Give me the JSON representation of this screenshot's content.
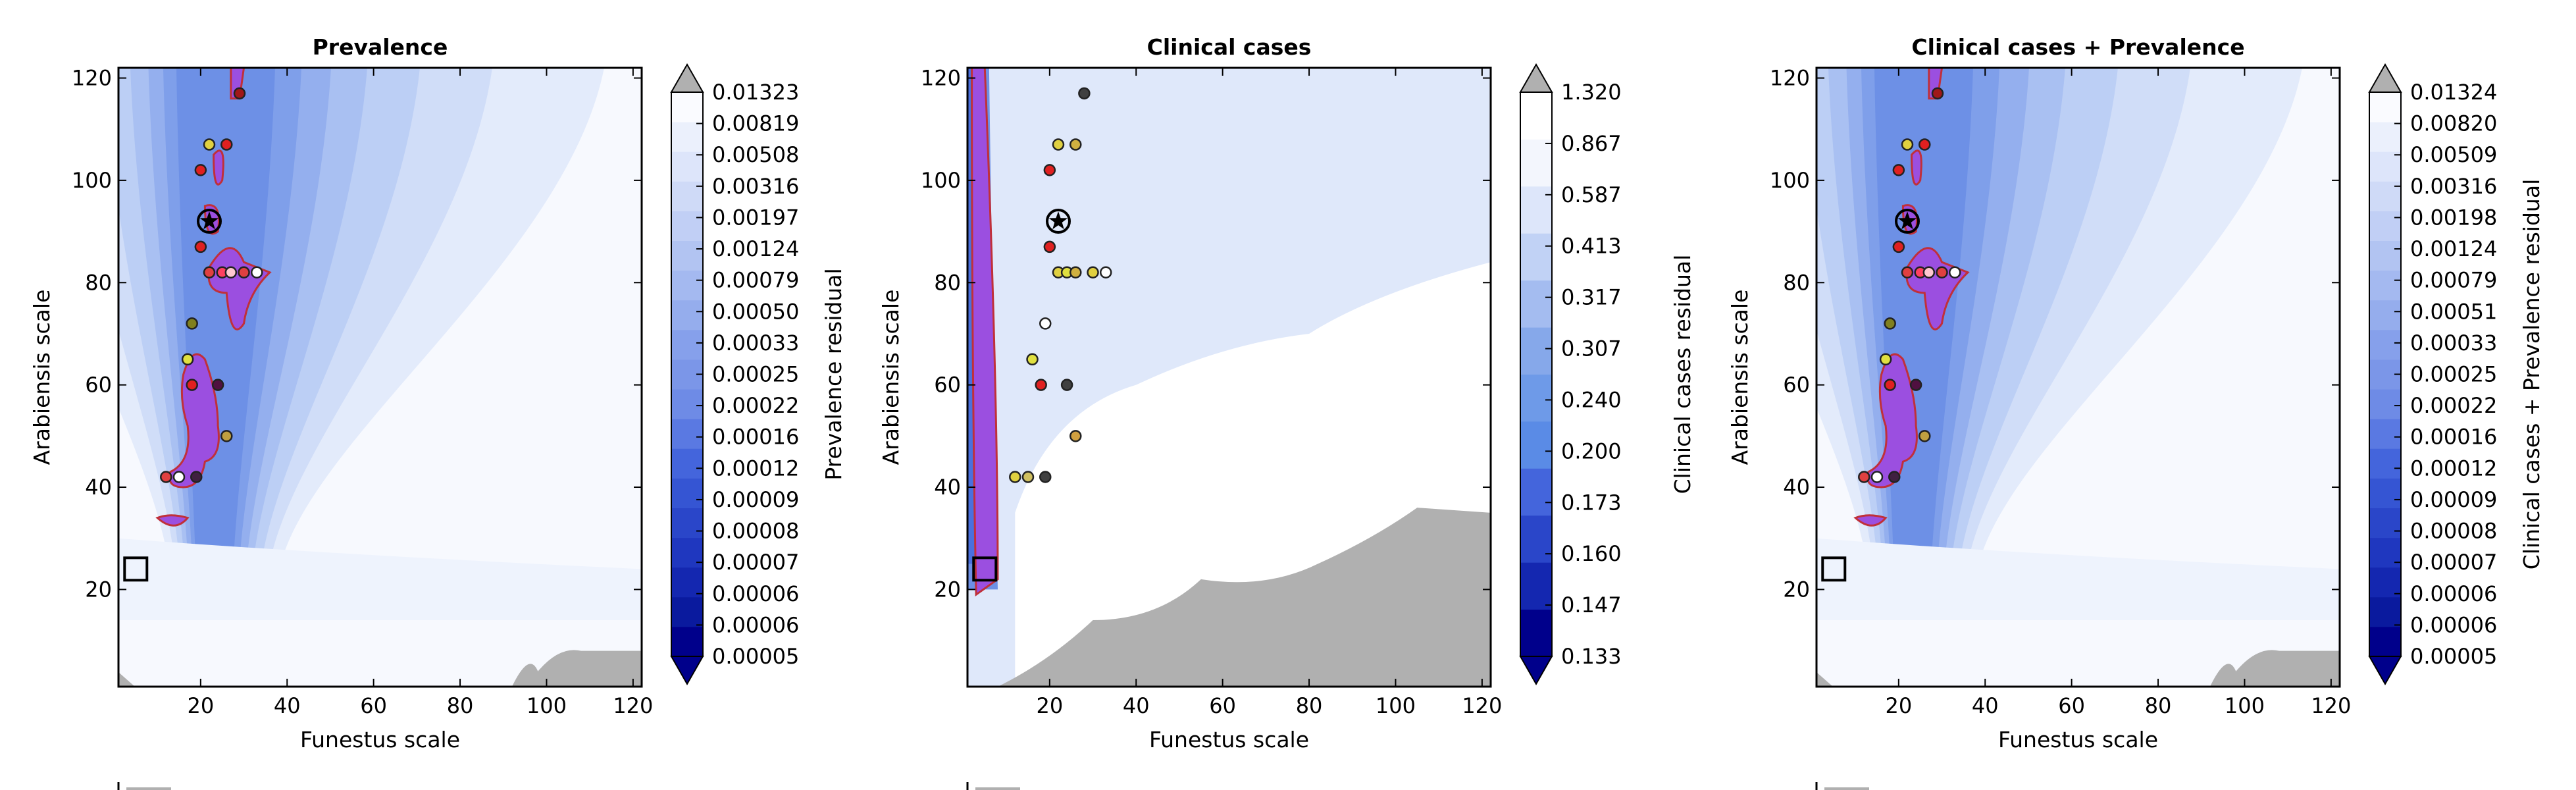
{
  "chart_data": [
    {
      "type": "contour",
      "title": "Prevalence",
      "xlabel": "Funestus scale",
      "ylabel": "Arabiensis scale",
      "xlim": [
        1,
        122
      ],
      "ylim": [
        1,
        122
      ],
      "xticks": [
        20,
        40,
        60,
        80,
        100,
        120
      ],
      "yticks": [
        20,
        40,
        60,
        80,
        100,
        120
      ],
      "colorbar_label": "Prevalence residual",
      "colorbar_levels": [
        "0.00005",
        "0.00006",
        "0.00006",
        "0.00007",
        "0.00008",
        "0.00009",
        "0.00012",
        "0.00016",
        "0.00022",
        "0.00025",
        "0.00033",
        "0.00050",
        "0.00079",
        "0.00124",
        "0.00197",
        "0.00316",
        "0.00508",
        "0.00819",
        "0.01323"
      ],
      "markers": {
        "square": [
          5,
          24
        ],
        "star": [
          22,
          92
        ],
        "points": [
          {
            "x": 29,
            "y": 117,
            "color": "#a01818"
          },
          {
            "x": 22,
            "y": 107,
            "color": "#e0d040"
          },
          {
            "x": 26,
            "y": 107,
            "color": "#e02020"
          },
          {
            "x": 20,
            "y": 102,
            "color": "#e02020"
          },
          {
            "x": 20,
            "y": 87,
            "color": "#e02020"
          },
          {
            "x": 22,
            "y": 82,
            "color": "#e04040"
          },
          {
            "x": 25,
            "y": 82,
            "color": "#ff4060"
          },
          {
            "x": 27,
            "y": 82,
            "color": "#ffc8d0"
          },
          {
            "x": 30,
            "y": 82,
            "color": "#e04040"
          },
          {
            "x": 33,
            "y": 82,
            "color": "#ffffff"
          },
          {
            "x": 18,
            "y": 72,
            "color": "#808020"
          },
          {
            "x": 17,
            "y": 65,
            "color": "#e0e040"
          },
          {
            "x": 18,
            "y": 60,
            "color": "#e02020"
          },
          {
            "x": 24,
            "y": 60,
            "color": "#501040"
          },
          {
            "x": 26,
            "y": 50,
            "color": "#c0a040"
          },
          {
            "x": 12,
            "y": 42,
            "color": "#e04040"
          },
          {
            "x": 15,
            "y": 42,
            "color": "#ffffff"
          },
          {
            "x": 19,
            "y": 42,
            "color": "#402040"
          }
        ]
      }
    },
    {
      "type": "contour",
      "title": "Clinical cases",
      "xlabel": "Funestus scale",
      "ylabel": "Arabiensis scale",
      "xlim": [
        1,
        122
      ],
      "ylim": [
        1,
        122
      ],
      "xticks": [
        20,
        40,
        60,
        80,
        100,
        120
      ],
      "yticks": [
        20,
        40,
        60,
        80,
        100,
        120
      ],
      "colorbar_label": "Clinical cases residual",
      "colorbar_levels": [
        "0.133",
        "0.147",
        "0.160",
        "0.173",
        "0.200",
        "0.240",
        "0.307",
        "0.317",
        "0.413",
        "0.587",
        "0.867",
        "1.320"
      ],
      "markers": {
        "square": [
          5,
          24
        ],
        "star": [
          22,
          92
        ],
        "points": [
          {
            "x": 28,
            "y": 117,
            "color": "#404040"
          },
          {
            "x": 22,
            "y": 107,
            "color": "#e0d040"
          },
          {
            "x": 26,
            "y": 107,
            "color": "#d0b040"
          },
          {
            "x": 20,
            "y": 102,
            "color": "#e02020"
          },
          {
            "x": 20,
            "y": 87,
            "color": "#e02020"
          },
          {
            "x": 22,
            "y": 82,
            "color": "#e0d040"
          },
          {
            "x": 24,
            "y": 82,
            "color": "#e0e040"
          },
          {
            "x": 26,
            "y": 82,
            "color": "#d0b040"
          },
          {
            "x": 30,
            "y": 82,
            "color": "#e0d040"
          },
          {
            "x": 33,
            "y": 82,
            "color": "#ffffff"
          },
          {
            "x": 19,
            "y": 72,
            "color": "#ffffff"
          },
          {
            "x": 16,
            "y": 65,
            "color": "#e0e040"
          },
          {
            "x": 18,
            "y": 60,
            "color": "#e02020"
          },
          {
            "x": 24,
            "y": 60,
            "color": "#404040"
          },
          {
            "x": 26,
            "y": 50,
            "color": "#d0a040"
          },
          {
            "x": 12,
            "y": 42,
            "color": "#e0d040"
          },
          {
            "x": 15,
            "y": 42,
            "color": "#d0c060"
          },
          {
            "x": 19,
            "y": 42,
            "color": "#404040"
          }
        ]
      }
    },
    {
      "type": "contour",
      "title": "Clinical cases + Prevalence",
      "xlabel": "Funestus scale",
      "ylabel": "Arabiensis scale",
      "xlim": [
        1,
        122
      ],
      "ylim": [
        1,
        122
      ],
      "xticks": [
        20,
        40,
        60,
        80,
        100,
        120
      ],
      "yticks": [
        20,
        40,
        60,
        80,
        100,
        120
      ],
      "colorbar_label": "Clinical cases + Prevalence residual",
      "colorbar_levels": [
        "0.00005",
        "0.00006",
        "0.00006",
        "0.00007",
        "0.00008",
        "0.00009",
        "0.00012",
        "0.00016",
        "0.00022",
        "0.00025",
        "0.00033",
        "0.00051",
        "0.00079",
        "0.00124",
        "0.00198",
        "0.00316",
        "0.00509",
        "0.00820",
        "0.01324"
      ],
      "markers": {
        "square": [
          5,
          24
        ],
        "star": [
          22,
          92
        ],
        "points": [
          {
            "x": 29,
            "y": 117,
            "color": "#a01818"
          },
          {
            "x": 22,
            "y": 107,
            "color": "#e0d040"
          },
          {
            "x": 26,
            "y": 107,
            "color": "#e02020"
          },
          {
            "x": 20,
            "y": 102,
            "color": "#e02020"
          },
          {
            "x": 20,
            "y": 87,
            "color": "#e02020"
          },
          {
            "x": 22,
            "y": 82,
            "color": "#e04040"
          },
          {
            "x": 25,
            "y": 82,
            "color": "#ff4060"
          },
          {
            "x": 27,
            "y": 82,
            "color": "#ffc8d0"
          },
          {
            "x": 30,
            "y": 82,
            "color": "#e04040"
          },
          {
            "x": 33,
            "y": 82,
            "color": "#ffffff"
          },
          {
            "x": 18,
            "y": 72,
            "color": "#808020"
          },
          {
            "x": 17,
            "y": 65,
            "color": "#e0e040"
          },
          {
            "x": 18,
            "y": 60,
            "color": "#e02020"
          },
          {
            "x": 24,
            "y": 60,
            "color": "#501040"
          },
          {
            "x": 26,
            "y": 50,
            "color": "#c0a040"
          },
          {
            "x": 12,
            "y": 42,
            "color": "#e04040"
          },
          {
            "x": 15,
            "y": 42,
            "color": "#ffffff"
          },
          {
            "x": 19,
            "y": 42,
            "color": "#402040"
          }
        ]
      }
    }
  ]
}
